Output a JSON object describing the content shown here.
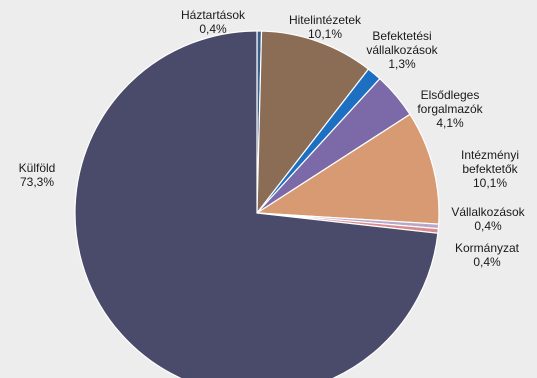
{
  "chart_data": {
    "type": "pie",
    "slices": [
      {
        "label_lines": [
          "Háztartások",
          "0,4%"
        ],
        "value": 0.4,
        "color": "#3a5f8f"
      },
      {
        "label_lines": [
          "Hitelintézetek",
          "10,1%"
        ],
        "value": 10.1,
        "color": "#8b6c54"
      },
      {
        "label_lines": [
          "Befektetési",
          "vállalkozások",
          "1,3%"
        ],
        "value": 1.3,
        "color": "#1c6fc1"
      },
      {
        "label_lines": [
          "Elsődleges",
          "forgalmazók",
          "4,1%"
        ],
        "value": 4.1,
        "color": "#7c6aa8"
      },
      {
        "label_lines": [
          "Intézményi",
          "befektetők",
          "10,1%"
        ],
        "value": 10.1,
        "color": "#d89a72"
      },
      {
        "label_lines": [
          "Vállalkozások",
          "0,4%"
        ],
        "value": 0.4,
        "color": "#b8a7c8"
      },
      {
        "label_lines": [
          "Kormányzat",
          "0,4%"
        ],
        "value": 0.4,
        "color": "#d98b8b"
      },
      {
        "label_lines": [
          "Külföld",
          "73,3%"
        ],
        "value": 73.3,
        "color": "#4a4a6a"
      }
    ]
  }
}
